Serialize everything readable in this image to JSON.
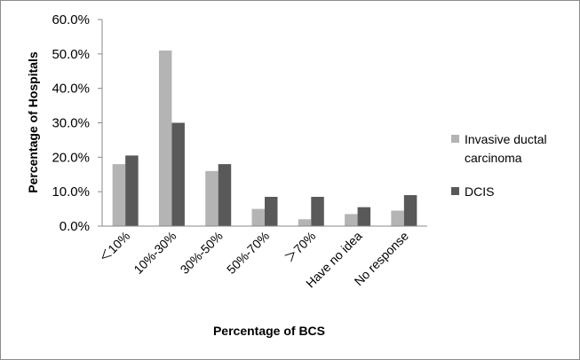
{
  "chart_data": {
    "type": "bar",
    "title": "",
    "xlabel": "Percentage of BCS",
    "ylabel": "Percentage of Hospitals",
    "categories": [
      "＜10%",
      "10%-30%",
      "30%-50%",
      "50%-70%",
      "＞70%",
      "Have no idea",
      "No response"
    ],
    "series": [
      {
        "name": "Invasive ductal carcinoma",
        "values": [
          18.0,
          51.0,
          16.0,
          5.0,
          2.0,
          3.5,
          4.5
        ],
        "color": "#b4b4b4"
      },
      {
        "name": "DCIS",
        "values": [
          20.5,
          30.0,
          18.0,
          8.5,
          8.5,
          5.5,
          9.0
        ],
        "color": "#595959"
      }
    ],
    "ylim": [
      0,
      60
    ],
    "yticks": [
      "0.0%",
      "10.0%",
      "20.0%",
      "30.0%",
      "40.0%",
      "50.0%",
      "60.0%"
    ],
    "grid": false,
    "legend": {
      "position": "right",
      "lines": [
        [
          "Invasive ductal",
          "carcinoma"
        ],
        [
          "DCIS"
        ]
      ]
    }
  }
}
